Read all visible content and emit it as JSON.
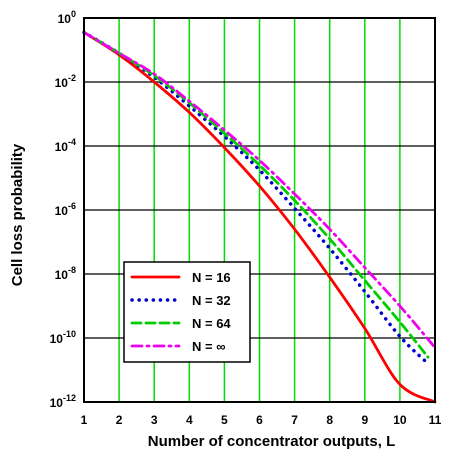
{
  "chart_data": {
    "type": "line",
    "xlabel": "Number of concentrator  outputs, L",
    "ylabel": "Cell loss  probability",
    "xlim": [
      1,
      11
    ],
    "ylim_exponent": [
      -12,
      0
    ],
    "y_scale": "log10",
    "x_ticks": [
      "1",
      "2",
      "3",
      "4",
      "5",
      "6",
      "7",
      "8",
      "9",
      "10",
      "11"
    ],
    "y_ticks": [
      {
        "exp": 0,
        "base": "10",
        "sup": "0"
      },
      {
        "exp": -2,
        "base": "10",
        "sup": "-2"
      },
      {
        "exp": -4,
        "base": "10",
        "sup": "-4"
      },
      {
        "exp": -6,
        "base": "10",
        "sup": "-6"
      },
      {
        "exp": -8,
        "base": "10",
        "sup": "-8"
      },
      {
        "exp": -10,
        "base": "10",
        "sup": "-10"
      },
      {
        "exp": -12,
        "base": "10",
        "sup": "-12"
      }
    ],
    "grid": {
      "vertical_color": "#00dd00",
      "horizontal_color": "#000000"
    },
    "legend_position": "lower-left",
    "series": [
      {
        "name": "N = 16",
        "color": "#ff0000",
        "style": "solid",
        "x": [
          1,
          2,
          3,
          4,
          5,
          6,
          7,
          8,
          9,
          10,
          11
        ],
        "log10_y": [
          -0.45,
          -1.15,
          -2.0,
          -2.95,
          -4.05,
          -5.25,
          -6.6,
          -8.1,
          -9.7,
          -11.45,
          -12.0
        ]
      },
      {
        "name": "N = 32",
        "color": "#0000cc",
        "style": "dotted",
        "x": [
          1,
          2,
          3,
          4,
          5,
          6,
          7,
          8,
          9,
          10,
          10.8
        ],
        "log10_y": [
          -0.45,
          -1.1,
          -1.85,
          -2.75,
          -3.7,
          -4.75,
          -5.95,
          -7.2,
          -8.55,
          -9.95,
          -10.8
        ]
      },
      {
        "name": "N = 64",
        "color": "#00cc00",
        "style": "dashed",
        "x": [
          1,
          2,
          3,
          4,
          5,
          6,
          7,
          8,
          9,
          10,
          10.8
        ],
        "log10_y": [
          -0.45,
          -1.1,
          -1.8,
          -2.65,
          -3.6,
          -4.6,
          -5.7,
          -6.9,
          -8.2,
          -9.5,
          -10.6
        ]
      },
      {
        "name": "N = ∞",
        "color": "#ee00ee",
        "style": "dashdot",
        "x": [
          1,
          2,
          3,
          4,
          5,
          6,
          7,
          8,
          9,
          10,
          11
        ],
        "log10_y": [
          -0.45,
          -1.1,
          -1.75,
          -2.6,
          -3.5,
          -4.45,
          -5.5,
          -6.6,
          -7.8,
          -9.0,
          -10.3
        ]
      }
    ]
  }
}
